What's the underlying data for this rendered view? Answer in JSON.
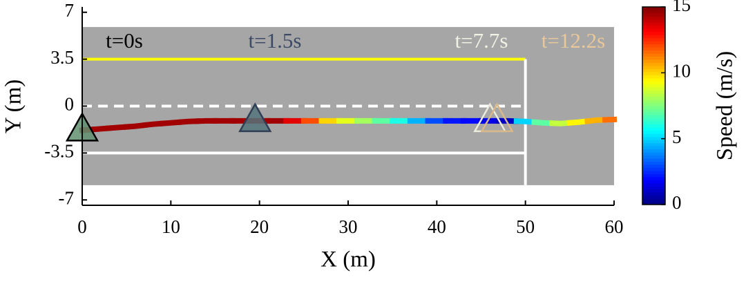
{
  "chart_data": {
    "type": "trajectory",
    "x_label": "X (m)",
    "y_label": "Y (m)",
    "xlim": [
      0,
      60
    ],
    "xticks": [
      0,
      10,
      20,
      30,
      40,
      50,
      60
    ],
    "ylim": [
      -7.4,
      7.4
    ],
    "yticks": [
      -7,
      -3.5,
      0,
      3.5,
      7
    ],
    "road": {
      "color": "#a6a6a6",
      "xlim": [
        0,
        60
      ],
      "ylim": [
        -5.9,
        5.9
      ]
    },
    "lane_lines": [
      {
        "color": "#ffff00",
        "dash": false,
        "x": [
          0,
          50
        ],
        "y": [
          3.5,
          3.5
        ]
      },
      {
        "color": "#ffffff",
        "dash": true,
        "x": [
          0,
          50
        ],
        "y": [
          0,
          0
        ]
      },
      {
        "color": "#ffffff",
        "dash": false,
        "x": [
          0,
          50
        ],
        "y": [
          -3.5,
          -3.5
        ]
      },
      {
        "color": "#ffffff",
        "dash": false,
        "x": [
          50,
          50
        ],
        "y": [
          3.5,
          -5.9
        ]
      }
    ],
    "trajectory": {
      "x": [
        0,
        2,
        4,
        6,
        8,
        10,
        12,
        14,
        16,
        18,
        20,
        22,
        24,
        26,
        28,
        30,
        32,
        34,
        36,
        38,
        40,
        42,
        44,
        46,
        48,
        50,
        52,
        54,
        56,
        58,
        60
      ],
      "y": [
        -1.8,
        -1.7,
        -1.6,
        -1.5,
        -1.35,
        -1.25,
        -1.15,
        -1.1,
        -1.1,
        -1.1,
        -1.1,
        -1.1,
        -1.1,
        -1.1,
        -1.1,
        -1.1,
        -1.1,
        -1.1,
        -1.1,
        -1.1,
        -1.1,
        -1.1,
        -1.1,
        -1.1,
        -1.1,
        -1.15,
        -1.25,
        -1.3,
        -1.2,
        -1.05,
        -1.0
      ],
      "speed": [
        14.5,
        14.5,
        14.5,
        14.5,
        14.5,
        14.5,
        14.5,
        14.5,
        14.5,
        14.5,
        14.5,
        14.5,
        13.5,
        12,
        10,
        9,
        8,
        7,
        6,
        4.5,
        3,
        2.2,
        2,
        1.5,
        1,
        5,
        7,
        8.5,
        9.5,
        10.5,
        11.5
      ]
    },
    "snapshots": [
      {
        "label": "t=0s",
        "x": 0,
        "y": -1.8,
        "color": "#000000",
        "fill": "#5f8f6e",
        "stroke": "#000000"
      },
      {
        "label": "t=1.5s",
        "x": 19.5,
        "y": -1.1,
        "color": "#3d4a66",
        "fill": "#55737c",
        "stroke": "#2f3f55"
      },
      {
        "label": "t=7.7s",
        "x": 46,
        "y": -1.1,
        "color": "#f2f2e4",
        "fill": "none",
        "stroke": "#ececdc"
      },
      {
        "label": "t=12.2s",
        "x": 46.8,
        "y": -1.1,
        "color": "#e8c89a",
        "fill": "none",
        "stroke": "#d8b888"
      }
    ],
    "colorbar": {
      "label": "Speed (m/s)",
      "lim": [
        0,
        15
      ],
      "ticks": [
        0,
        5,
        10,
        15
      ],
      "colormap": "jet"
    }
  }
}
